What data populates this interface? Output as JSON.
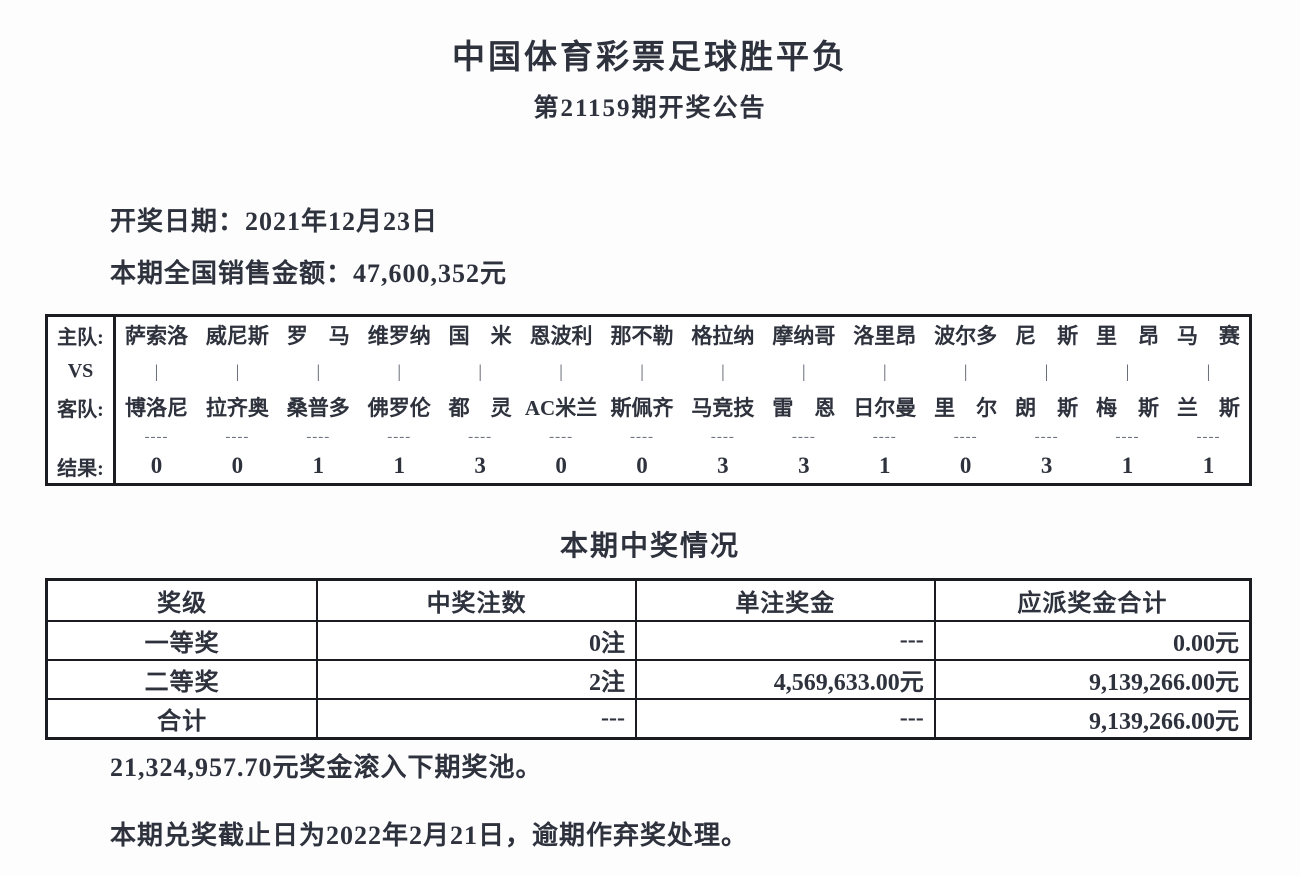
{
  "announcement": {
    "title": "中国体育彩票足球胜平负",
    "subtitle": "第21159期开奖公告",
    "draw_date": "开奖日期：2021年12月23日",
    "total_sales": "本期全国销售金额：47,600,352元"
  },
  "match_table": {
    "labels": {
      "home": "主队:",
      "vs": "VS",
      "away": "客队:",
      "result": "结果:"
    },
    "pipe": "|",
    "dashes": "----",
    "matches": [
      {
        "home": "萨索洛",
        "away": "博洛尼",
        "result": "0"
      },
      {
        "home": "威尼斯",
        "away": "拉齐奥",
        "result": "0"
      },
      {
        "home": "罗　马",
        "away": "桑普多",
        "result": "1"
      },
      {
        "home": "维罗纳",
        "away": "佛罗伦",
        "result": "1"
      },
      {
        "home": "国　米",
        "away": "都　灵",
        "result": "3"
      },
      {
        "home": "恩波利",
        "away": "AC米兰",
        "result": "0"
      },
      {
        "home": "那不勒",
        "away": "斯佩齐",
        "result": "0"
      },
      {
        "home": "格拉纳",
        "away": "马竞技",
        "result": "3"
      },
      {
        "home": "摩纳哥",
        "away": "雷　恩",
        "result": "3"
      },
      {
        "home": "洛里昂",
        "away": "日尔曼",
        "result": "1"
      },
      {
        "home": "波尔多",
        "away": "里　尔",
        "result": "0"
      },
      {
        "home": "尼　斯",
        "away": "朗　斯",
        "result": "3"
      },
      {
        "home": "里　昂",
        "away": "梅　斯",
        "result": "1"
      },
      {
        "home": "马　赛",
        "away": "兰　斯",
        "result": "1"
      }
    ]
  },
  "prize_section": {
    "title": "本期中奖情况",
    "columns": [
      "奖级",
      "中奖注数",
      "单注奖金",
      "应派奖金合计"
    ],
    "rows": [
      {
        "level": "一等奖",
        "count": "0注",
        "single_prize": "---",
        "total_prize": "0.00元"
      },
      {
        "level": "二等奖",
        "count": "2注",
        "single_prize": "4,569,633.00元",
        "total_prize": "9,139,266.00元"
      },
      {
        "level": "合计",
        "count": "---",
        "single_prize": "---",
        "total_prize": "9,139,266.00元"
      }
    ]
  },
  "footer": {
    "rollover": "21,324,957.70元奖金滚入下期奖池。",
    "deadline": "本期兑奖截止日为2022年2月21日，逾期作弃奖处理。"
  }
}
